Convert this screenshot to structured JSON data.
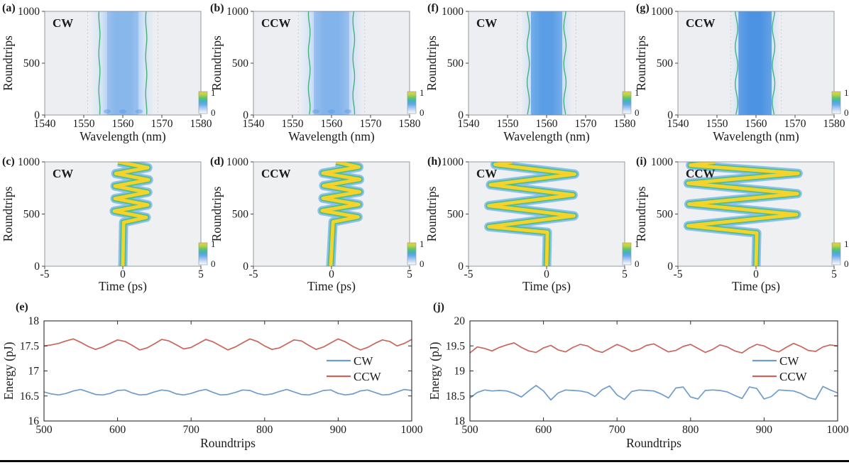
{
  "page": {
    "background": "#ffffff",
    "bottom_rule_color": "#0a0a0a"
  },
  "colorbar": {
    "max_label": "1",
    "min_label": "0",
    "gradient": [
      "#fdfeff",
      "#cfe0f6",
      "#9cc3f0",
      "#63a7e8",
      "#3fb3c0",
      "#62c464",
      "#b8d44a",
      "#f2ce2e"
    ]
  },
  "styles": {
    "text_color": "#1a1a1a",
    "heat_bg": "#eceef1",
    "time_bg": "#eef0f2",
    "heat_frame": "#8a8f96",
    "energy_frame": "#2b2b2b",
    "green_contour": "#3fae6e",
    "gray_dash": "#c3c7cd",
    "trace_outer": "#8cc0f0",
    "trace_mid": "#4fbf8e",
    "trace_core": "#f6d32a",
    "cw_color": "#6f9ccb",
    "ccw_color": "#c9655c"
  },
  "chart_data": [
    {
      "id": "a",
      "type": "heatmap-spectral",
      "letter": "(a)",
      "annotation": "CW",
      "xlabel": "Wavelength (nm)",
      "ylabel": "Roundtrips",
      "xlim": [
        1540,
        1580
      ],
      "xticks": [
        1540,
        1550,
        1560,
        1570,
        1580
      ],
      "ylim": [
        0,
        1000
      ],
      "yticks": [
        0,
        500,
        1000
      ],
      "colorbar_range": [
        0,
        1
      ],
      "band": {
        "range": [
          1552,
          1568
        ],
        "core_color": "#93bfee",
        "inner_range": [
          1556,
          1564
        ],
        "inner_color": "#7fb0ea",
        "inner_opacity": 0.55
      },
      "green_lines": [
        1554,
        1566
      ],
      "green_wobble": 0.8,
      "gray_dashed_lines": [
        1551,
        1569
      ],
      "bottom_spots": true
    },
    {
      "id": "b",
      "type": "heatmap-spectral",
      "letter": "(b)",
      "annotation": "CCW",
      "xlabel": "Wavelength (nm)",
      "ylabel": "Roundtrips",
      "xlim": [
        1540,
        1580
      ],
      "xticks": [
        1540,
        1550,
        1560,
        1570,
        1580
      ],
      "ylim": [
        0,
        1000
      ],
      "yticks": [
        0,
        500,
        1000
      ],
      "colorbar_range": [
        0,
        1
      ],
      "band": {
        "range": [
          1552,
          1568
        ],
        "core_color": "#8dbcee",
        "inner_range": [
          1555.5,
          1564.5
        ],
        "inner_color": "#7aace9",
        "inner_opacity": 0.55
      },
      "green_lines": [
        1554.3,
        1565.7
      ],
      "green_wobble": 1.2,
      "gray_dashed_lines": [
        1551.5,
        1568.5
      ],
      "bottom_spots": true
    },
    {
      "id": "f",
      "type": "heatmap-spectral",
      "letter": "(f)",
      "annotation": "CW",
      "xlabel": "Wavelength (nm)",
      "ylabel": "Roundtrips",
      "xlim": [
        1540,
        1580
      ],
      "xticks": [
        1540,
        1550,
        1560,
        1570,
        1580
      ],
      "ylim": [
        0,
        1000
      ],
      "yticks": [
        0,
        500,
        1000
      ],
      "colorbar_range": [
        0,
        1
      ],
      "band": {
        "range": [
          1553.5,
          1566.5
        ],
        "core_color": "#6fa9e8",
        "inner_range": [
          1556,
          1564
        ],
        "inner_color": "#549ae4",
        "inner_opacity": 0.7
      },
      "green_lines": [
        1555.3,
        1564.7
      ],
      "green_wobble": 1.6,
      "gray_dashed_lines": [
        1552.5,
        1567.5
      ],
      "bottom_spots": false
    },
    {
      "id": "g",
      "type": "heatmap-spectral",
      "letter": "(g)",
      "annotation": "CCW",
      "xlabel": "Wavelength (nm)",
      "ylabel": "Roundtrips",
      "xlim": [
        1540,
        1580
      ],
      "xticks": [
        1540,
        1550,
        1560,
        1570,
        1580
      ],
      "ylim": [
        0,
        1000
      ],
      "yticks": [
        0,
        500,
        1000
      ],
      "colorbar_range": [
        0,
        1
      ],
      "band": {
        "range": [
          1553.5,
          1566
        ],
        "core_color": "#5fa0e6",
        "inner_range": [
          1555.5,
          1564
        ],
        "inner_color": "#4890e2",
        "inner_opacity": 0.8
      },
      "green_lines": [
        1555,
        1564.5
      ],
      "green_wobble": 1.8,
      "gray_dashed_lines": [
        1553.5,
        1566.5
      ],
      "bottom_spots": false
    },
    {
      "id": "c",
      "type": "heatmap-temporal",
      "letter": "(c)",
      "annotation": "CW",
      "xlabel": "Time (ps)",
      "ylabel": "Roundtrips",
      "xlim": [
        -5,
        5
      ],
      "xticks": [
        -5,
        0,
        5
      ],
      "ylim": [
        0,
        1000
      ],
      "yticks": [
        0,
        500,
        1000
      ],
      "colorbar_range": [
        0,
        1
      ],
      "trace": [
        [
          0,
          0
        ],
        [
          0.05,
          420
        ],
        [
          1.5,
          468
        ],
        [
          -0.55,
          528
        ],
        [
          1.6,
          588
        ],
        [
          -0.5,
          648
        ],
        [
          1.6,
          708
        ],
        [
          -0.5,
          768
        ],
        [
          1.65,
          828
        ],
        [
          -0.45,
          888
        ],
        [
          1.6,
          945
        ],
        [
          -0.3,
          1000
        ]
      ]
    },
    {
      "id": "d",
      "type": "heatmap-temporal",
      "letter": "(d)",
      "annotation": "CCW",
      "xlabel": "Time (ps)",
      "ylabel": "Roundtrips",
      "xlim": [
        -5,
        5
      ],
      "xticks": [
        -5,
        0,
        5
      ],
      "ylim": [
        0,
        1000
      ],
      "yticks": [
        0,
        500,
        1000
      ],
      "colorbar_range": [
        0,
        1
      ],
      "trace": [
        [
          -0.05,
          0
        ],
        [
          0.1,
          425
        ],
        [
          1.7,
          472
        ],
        [
          -0.6,
          532
        ],
        [
          1.75,
          592
        ],
        [
          -0.55,
          652
        ],
        [
          1.8,
          712
        ],
        [
          -0.5,
          772
        ],
        [
          1.8,
          832
        ],
        [
          -0.55,
          892
        ],
        [
          1.75,
          950
        ],
        [
          0.3,
          1000
        ]
      ]
    },
    {
      "id": "h",
      "type": "heatmap-temporal",
      "letter": "(h)",
      "annotation": "CW",
      "xlabel": "Time (ps)",
      "ylabel": "Roundtrips",
      "xlim": [
        -5,
        5
      ],
      "xticks": [
        -5,
        0,
        5
      ],
      "ylim": [
        0,
        1000
      ],
      "yticks": [
        0,
        500,
        1000
      ],
      "colorbar_range": [
        0,
        1
      ],
      "trace": [
        [
          0,
          0
        ],
        [
          0.05,
          325
        ],
        [
          -3.7,
          378
        ],
        [
          1.75,
          483
        ],
        [
          -3.7,
          580
        ],
        [
          1.7,
          683
        ],
        [
          -3.6,
          780
        ],
        [
          1.8,
          883
        ],
        [
          -3.3,
          975
        ],
        [
          -2.2,
          1000
        ]
      ]
    },
    {
      "id": "i",
      "type": "heatmap-temporal",
      "letter": "(i)",
      "annotation": "CCW",
      "xlabel": "Time (ps)",
      "ylabel": "Roundtrips",
      "xlim": [
        -5,
        5
      ],
      "xticks": [
        -5,
        0,
        5
      ],
      "ylim": [
        0,
        1000
      ],
      "yticks": [
        0,
        500,
        1000
      ],
      "colorbar_range": [
        0,
        1
      ],
      "trace": [
        [
          0,
          0
        ],
        [
          0.05,
          318
        ],
        [
          -4.35,
          388
        ],
        [
          2.6,
          495
        ],
        [
          -4.3,
          595
        ],
        [
          2.65,
          695
        ],
        [
          -4.35,
          795
        ],
        [
          2.7,
          890
        ],
        [
          -4.2,
          968
        ],
        [
          -2.6,
          1000
        ]
      ]
    },
    {
      "id": "e",
      "type": "line",
      "letter": "(e)",
      "xlabel": "Roundtrips",
      "ylabel": "Energy (pJ)",
      "xlim": [
        500,
        1000
      ],
      "xticks": [
        500,
        600,
        700,
        800,
        900,
        1000
      ],
      "ylim": [
        16,
        18
      ],
      "yticks": [
        16,
        16.5,
        17,
        17.5,
        18
      ],
      "x_start": 500,
      "x_step": 10,
      "legend": [
        "CW",
        "CCW"
      ],
      "series": [
        {
          "name": "CW",
          "color": "#6f9ccb",
          "values": [
            16.58,
            16.54,
            16.52,
            16.55,
            16.6,
            16.63,
            16.58,
            16.53,
            16.52,
            16.55,
            16.61,
            16.62,
            16.56,
            16.52,
            16.53,
            16.58,
            16.62,
            16.6,
            16.54,
            16.52,
            16.55,
            16.6,
            16.63,
            16.57,
            16.52,
            16.53,
            16.57,
            16.62,
            16.61,
            16.55,
            16.52,
            16.54,
            16.59,
            16.63,
            16.58,
            16.53,
            16.52,
            16.56,
            16.61,
            16.62,
            16.55,
            16.52,
            16.54,
            16.6,
            16.62,
            16.57,
            16.52,
            16.53,
            16.58,
            16.63,
            16.61
          ]
        },
        {
          "name": "CCW",
          "color": "#c9655c",
          "values": [
            17.5,
            17.52,
            17.55,
            17.6,
            17.64,
            17.57,
            17.49,
            17.43,
            17.48,
            17.55,
            17.62,
            17.59,
            17.51,
            17.42,
            17.46,
            17.54,
            17.63,
            17.6,
            17.52,
            17.44,
            17.47,
            17.55,
            17.63,
            17.58,
            17.5,
            17.42,
            17.48,
            17.56,
            17.64,
            17.59,
            17.5,
            17.43,
            17.46,
            17.54,
            17.62,
            17.6,
            17.51,
            17.43,
            17.48,
            17.56,
            17.64,
            17.58,
            17.49,
            17.42,
            17.47,
            17.55,
            17.62,
            17.59,
            17.5,
            17.55,
            17.63
          ]
        }
      ]
    },
    {
      "id": "j",
      "type": "line",
      "letter": "(j)",
      "xlabel": "Roundtrips",
      "ylabel": "Energy (pJ)",
      "xlim": [
        500,
        1000
      ],
      "xticks": [
        500,
        600,
        700,
        800,
        900,
        1000
      ],
      "ylim": [
        18,
        20
      ],
      "yticks": [
        18,
        18.5,
        19,
        19.5,
        20
      ],
      "x_start": 500,
      "x_step": 10,
      "legend": [
        "CW",
        "CCW"
      ],
      "series": [
        {
          "name": "CW",
          "color": "#6f9ccb",
          "values": [
            18.46,
            18.57,
            18.62,
            18.6,
            18.61,
            18.6,
            18.55,
            18.48,
            18.6,
            18.71,
            18.6,
            18.42,
            18.56,
            18.62,
            18.61,
            18.6,
            18.57,
            18.49,
            18.63,
            18.7,
            18.52,
            18.43,
            18.59,
            18.62,
            18.61,
            18.6,
            18.54,
            18.46,
            18.66,
            18.68,
            18.48,
            18.44,
            18.61,
            18.62,
            18.61,
            18.58,
            18.51,
            18.45,
            18.68,
            18.65,
            18.44,
            18.49,
            18.62,
            18.61,
            18.6,
            18.55,
            18.47,
            18.43,
            18.69,
            18.62,
            18.56
          ]
        },
        {
          "name": "CCW",
          "color": "#c9655c",
          "values": [
            19.36,
            19.48,
            19.45,
            19.4,
            19.47,
            19.52,
            19.56,
            19.47,
            19.4,
            19.37,
            19.46,
            19.51,
            19.42,
            19.38,
            19.47,
            19.53,
            19.5,
            19.41,
            19.37,
            19.45,
            19.53,
            19.47,
            19.39,
            19.43,
            19.51,
            19.54,
            19.46,
            19.38,
            19.41,
            19.49,
            19.53,
            19.45,
            19.37,
            19.43,
            19.52,
            19.48,
            19.4,
            19.36,
            19.46,
            19.53,
            19.5,
            19.42,
            19.38,
            19.47,
            19.55,
            19.49,
            19.41,
            19.39,
            19.48,
            19.52,
            19.5
          ]
        }
      ]
    }
  ]
}
